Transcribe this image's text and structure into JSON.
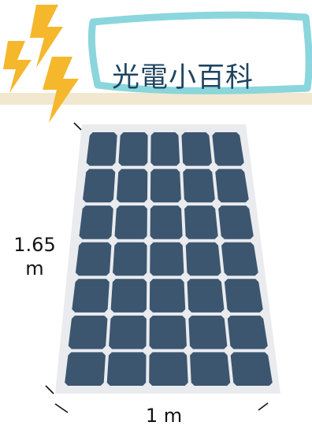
{
  "title": "光電小百科",
  "dimensions": {
    "height_value": "1.65",
    "height_unit": "m",
    "width_label": "1 m"
  },
  "panel": {
    "columns": 5,
    "rows": 7
  },
  "colors": {
    "title": "#1f4460",
    "title_frame": "#8ad6dc",
    "stripe": "#f1e8cf",
    "bolt": "#f5b72b",
    "panel_frame": "#e9ebee",
    "cell": "#3c5670"
  },
  "icons": [
    "lightning-bolt-icon",
    "solar-panel-icon"
  ]
}
